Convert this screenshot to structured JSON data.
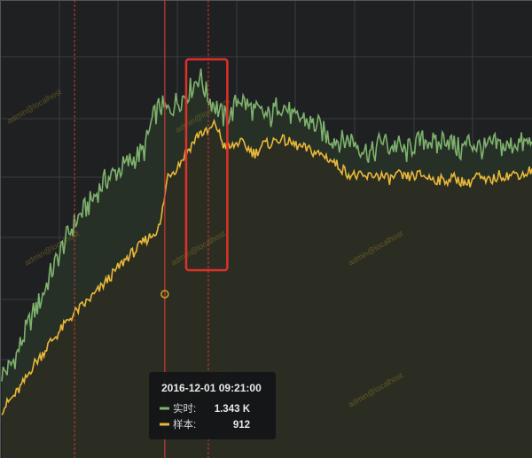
{
  "colors": {
    "background": "#1f2022",
    "grid": "#3a3d40",
    "series_realtime": "#7eb26d",
    "series_sample": "#eab839",
    "fill_realtime": "#263026",
    "fill_sample": "#2c2d22",
    "annotation": "#c93a32",
    "highlight_box": "#e0302a"
  },
  "watermark": "admin@localhost",
  "chart_data": {
    "type": "line",
    "grid": true,
    "legend": "tooltip",
    "tooltip": {
      "title": "2016-12-01 09:21:00",
      "rows": [
        {
          "label": "实时:",
          "value": "1.343 K",
          "color": "#7eb26d"
        },
        {
          "label": "样本:",
          "value": "912",
          "color": "#eab839"
        }
      ]
    },
    "series": [
      {
        "name": "实时",
        "values": [
          140,
          150,
          175,
          210,
          240,
          265,
          300,
          330,
          360,
          385,
          405,
          420,
          440,
          460,
          470,
          480,
          490,
          500,
          510,
          560,
          585,
          575,
          590,
          600,
          615,
          635,
          600,
          585,
          565,
          570,
          600,
          585,
          575,
          570,
          565,
          590,
          580,
          560,
          565,
          555,
          550,
          535,
          530,
          525,
          530,
          520,
          510,
          505,
          530,
          515,
          520,
          505,
          520,
          525,
          530,
          515,
          535,
          520,
          510,
          525,
          518,
          512,
          520,
          518,
          515,
          525,
          520,
          525
        ]
      },
      {
        "name": "样本",
        "values": [
          80,
          95,
          110,
          130,
          155,
          170,
          190,
          205,
          222,
          238,
          250,
          262,
          275,
          290,
          305,
          320,
          335,
          345,
          360,
          370,
          385,
          470,
          480,
          500,
          520,
          540,
          540,
          555,
          520,
          515,
          525,
          515,
          505,
          520,
          522,
          530,
          525,
          520,
          515,
          510,
          505,
          500,
          490,
          480,
          470,
          468,
          465,
          470,
          468,
          462,
          470,
          465,
          468,
          470,
          465,
          462,
          460,
          465,
          460,
          455,
          470,
          458,
          462,
          470,
          468,
          472,
          470,
          480
        ]
      }
    ],
    "ylim": [
      0,
      760
    ],
    "xlim": [
      0,
      67
    ],
    "markers": {
      "annotation_x": [
        9.2,
        20.6,
        26.1
      ],
      "highlight_x": [
        23.3,
        28.5
      ]
    }
  }
}
